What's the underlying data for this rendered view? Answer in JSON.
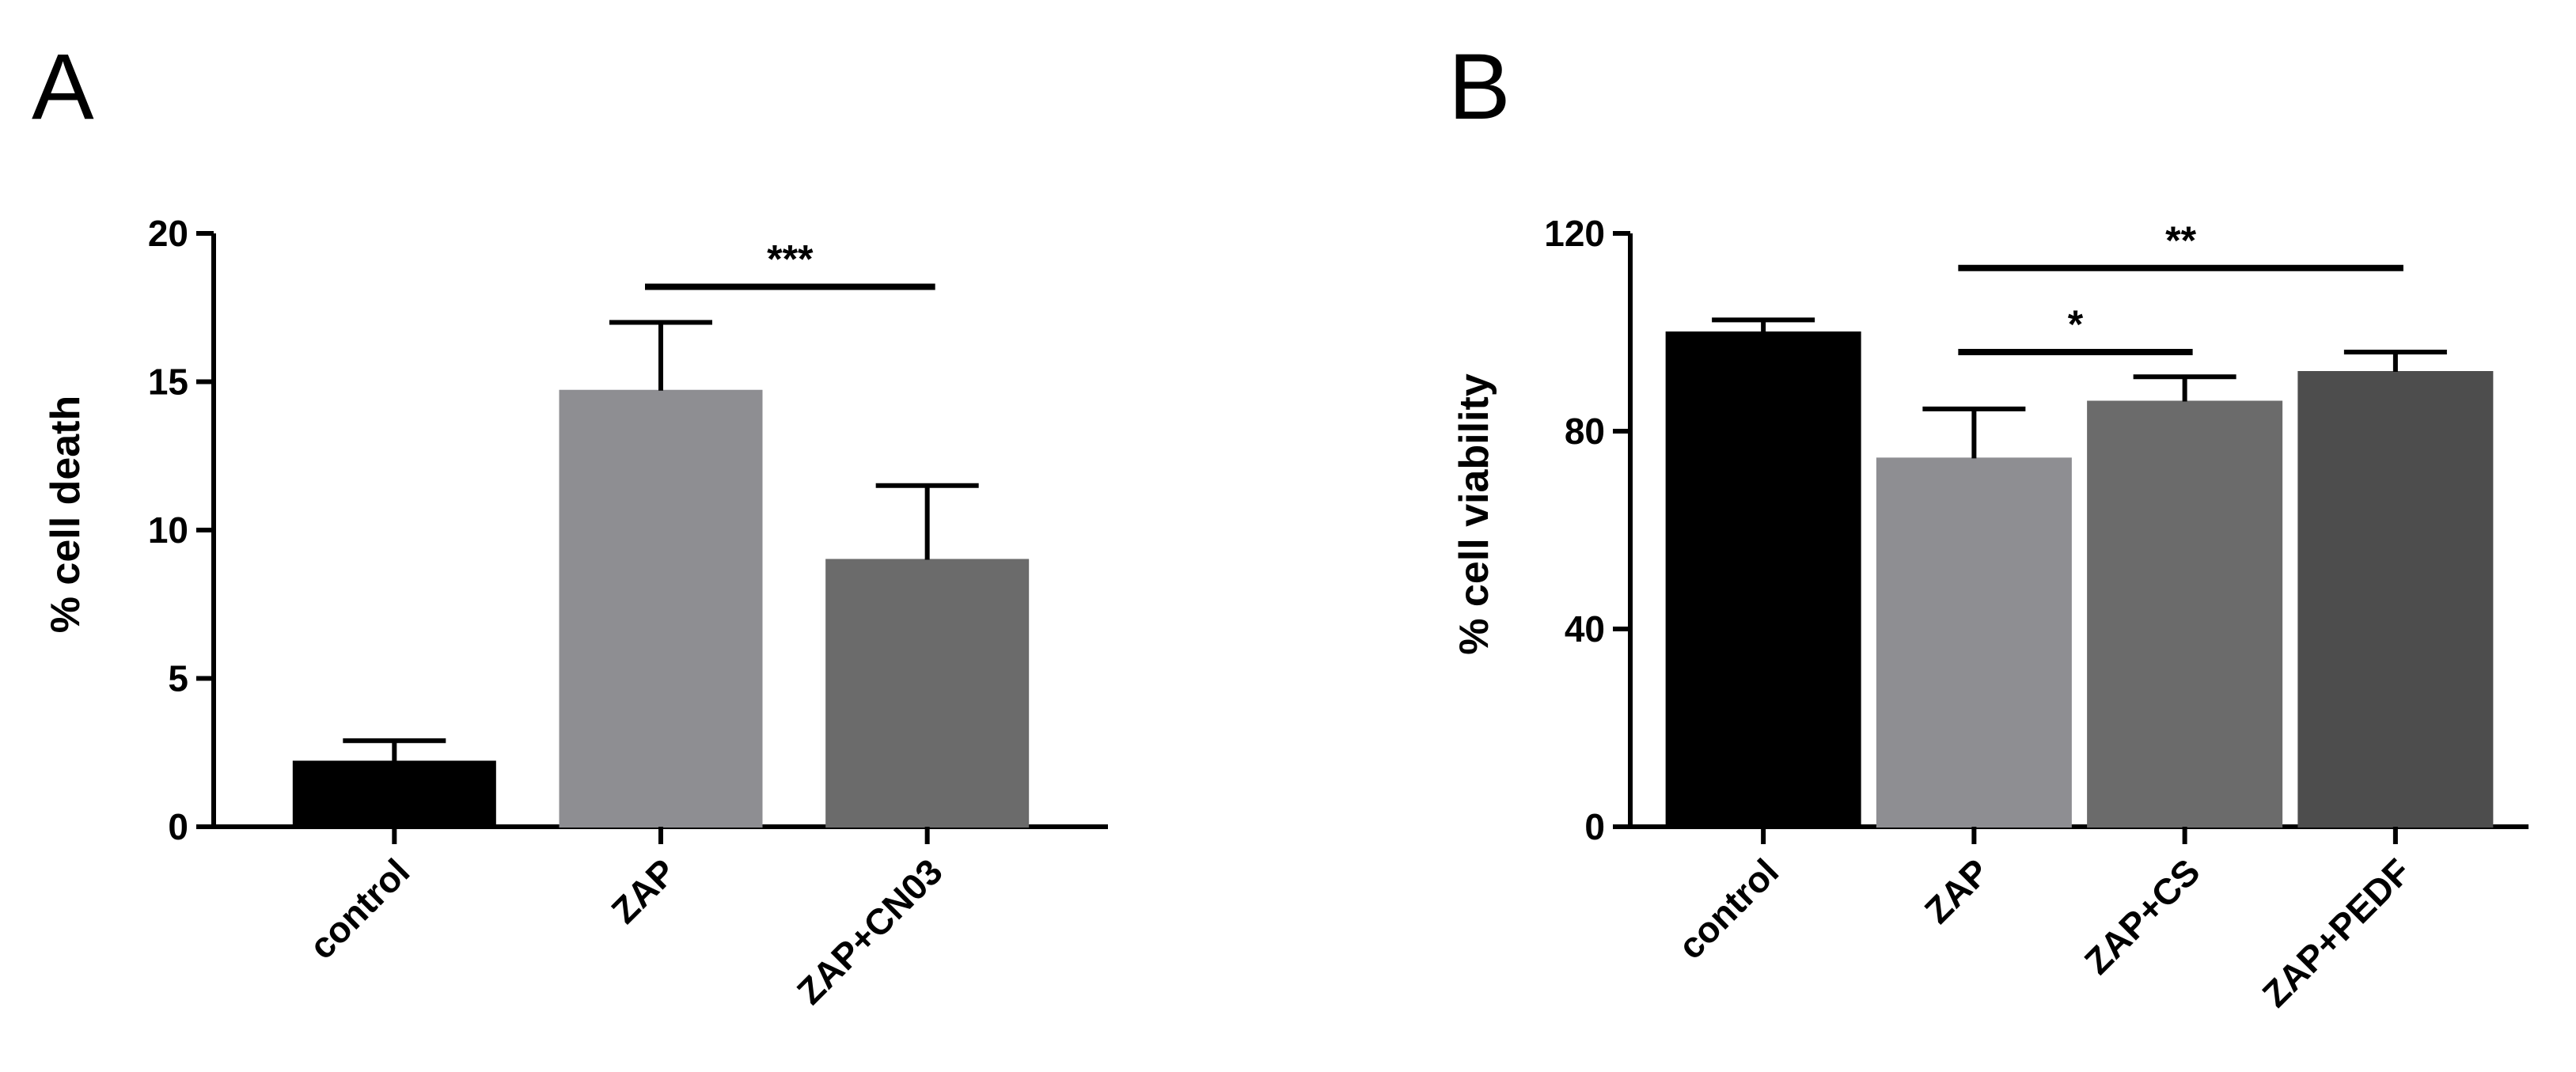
{
  "figure": {
    "panels": [
      "A",
      "B"
    ]
  },
  "chart_data": [
    {
      "panel": "A",
      "type": "bar",
      "title": "",
      "xlabel": "",
      "ylabel": "% cell death",
      "categories": [
        "control",
        "ZAP",
        "ZAP+CN03"
      ],
      "values": [
        2.2,
        14.7,
        9.0
      ],
      "errors": [
        0.7,
        2.3,
        2.5
      ],
      "colors": [
        "#000000",
        "#8e8e92",
        "#6b6b6b"
      ],
      "ylim": [
        0,
        20
      ],
      "yticks": [
        0,
        5,
        10,
        15,
        20
      ],
      "ytick_labels": [
        "0",
        "5",
        "10",
        "15",
        "20"
      ],
      "grid": false,
      "significance": [
        {
          "from": "ZAP",
          "to": "ZAP+CN03",
          "label": "***",
          "y": 18.2
        }
      ]
    },
    {
      "panel": "B",
      "type": "bar",
      "title": "",
      "xlabel": "",
      "ylabel": "% cell viability",
      "categories": [
        "control",
        "ZAP",
        "ZAP+CS",
        "ZAP+PEDF"
      ],
      "values": [
        100,
        74.5,
        86,
        92
      ],
      "errors": [
        2.5,
        10,
        5,
        4
      ],
      "colors": [
        "#000000",
        "#8e8e92",
        "#6b6b6b",
        "#4d4d4d"
      ],
      "ylim": [
        0,
        120
      ],
      "yticks": [
        0,
        40,
        80,
        120
      ],
      "ytick_labels": [
        "0",
        "40",
        "80",
        "120"
      ],
      "grid": false,
      "significance": [
        {
          "from": "ZAP",
          "to": "ZAP+CS",
          "label": "*",
          "y": 96
        },
        {
          "from": "ZAP",
          "to": "ZAP+PEDF",
          "label": "**",
          "y": 113
        }
      ]
    }
  ]
}
